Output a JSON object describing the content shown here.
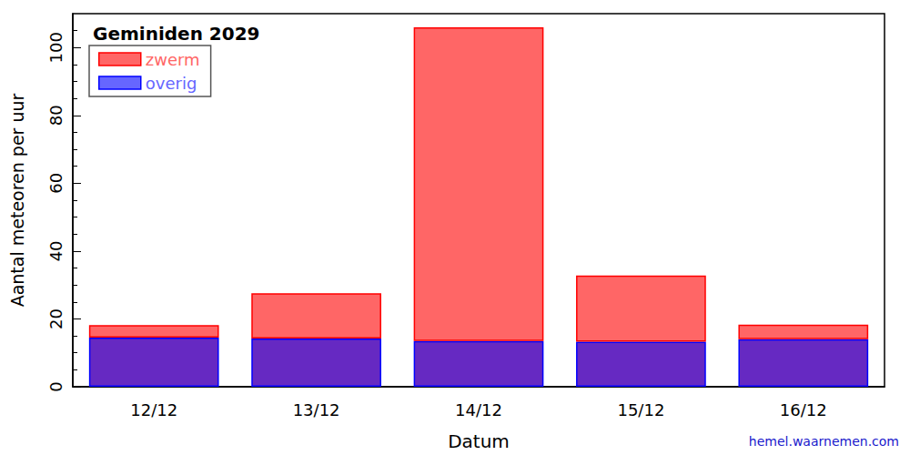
{
  "chart_data": {
    "type": "bar",
    "title": "Geminiden 2029",
    "x_label": "Datum",
    "y_label": "Aantal meteoren per uur",
    "annotation": "hemel.waarnemen.com",
    "categories": [
      "12/12",
      "13/12",
      "14/12",
      "15/12",
      "16/12"
    ],
    "series": [
      {
        "name": "zwerm",
        "color": "#ff0000",
        "values": [
          3.7,
          13.4,
          92.5,
          19.5,
          4.3
        ]
      },
      {
        "name": "overig",
        "color": "#0000ff",
        "values": [
          14.5,
          14.2,
          13.5,
          13.3,
          14.0
        ]
      }
    ],
    "stacked": true,
    "legend": "upper left",
    "ylim": [
      0,
      110
    ],
    "yticks": [
      0,
      20,
      40,
      60,
      80,
      100
    ]
  }
}
